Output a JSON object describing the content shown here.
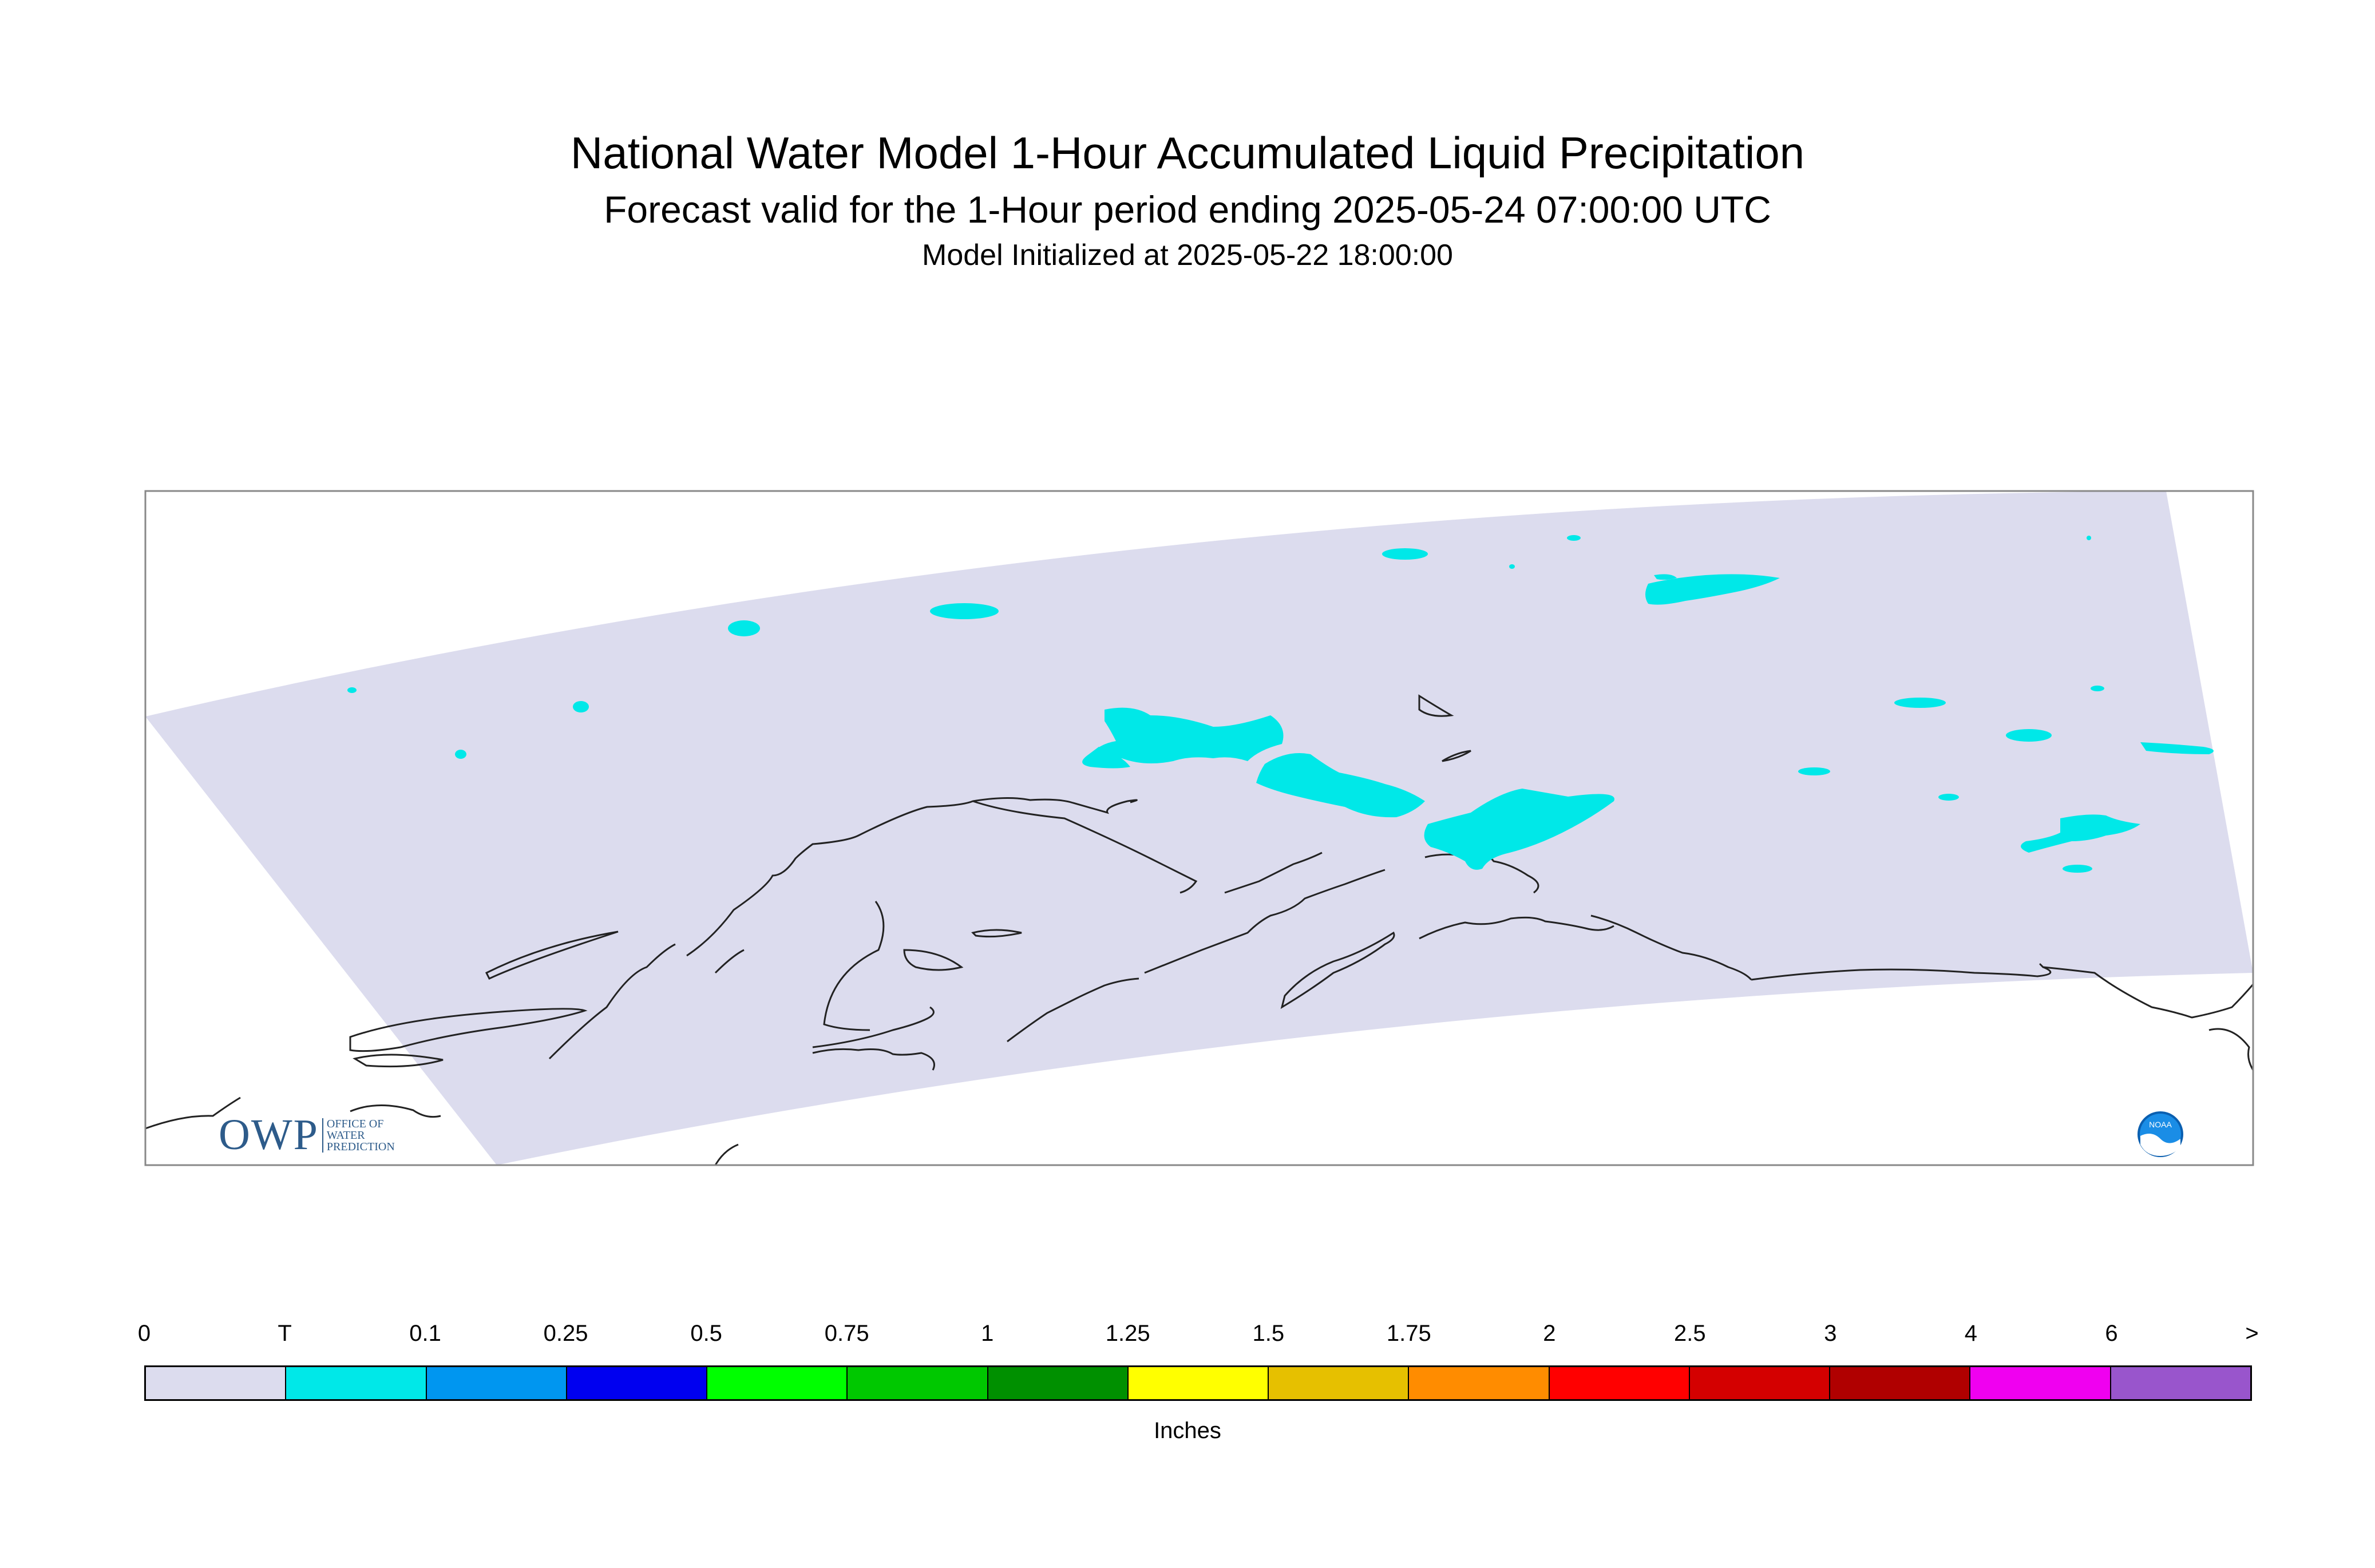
{
  "title": {
    "line1": "National Water Model 1-Hour Accumulated Liquid Precipitation",
    "line2": "Forecast valid for the 1-Hour period ending 2025-05-24 07:00:00 UTC",
    "line3": "Model Initialized at 2025-05-22 18:00:00"
  },
  "logos": {
    "owp_letters": "OWP",
    "owp_words": [
      "OFFICE OF",
      "WATER",
      "PREDICTION"
    ],
    "noaa": "NOAA"
  },
  "map": {
    "region": "Alaska",
    "domain_fill": "#dcdcee",
    "precip_fill": "#00e8e8",
    "coastline_color": "#222222"
  },
  "legend": {
    "units": "Inches",
    "tick_labels": [
      "0",
      "T",
      "0.1",
      "0.25",
      "0.5",
      "0.75",
      "1",
      "1.25",
      "1.5",
      "1.75",
      "2",
      "2.5",
      "3",
      "4",
      "6",
      ">"
    ],
    "colors": [
      "#dcdcee",
      "#00e8e8",
      "#0096f0",
      "#0000f0",
      "#00ff00",
      "#00c800",
      "#009000",
      "#ffff00",
      "#e6c000",
      "#ff8c00",
      "#ff0000",
      "#d40000",
      "#b00000",
      "#f000f0",
      "#9955cc"
    ]
  }
}
